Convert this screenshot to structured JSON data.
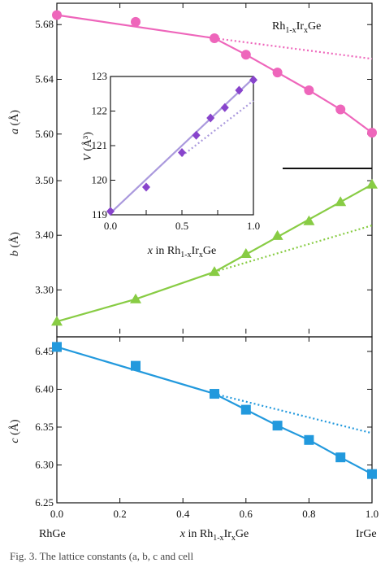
{
  "figure": {
    "caption_fragment": "Fig. 3.  The lattice constants (a, b, c and cell"
  },
  "chart_data": [
    {
      "id": "a",
      "type": "scatter",
      "ylabel_symbol": "a",
      "ylabel_unit": "(Å)",
      "annotation": {
        "base": "Rh",
        "sub1": "1-x",
        "mid": "Ir",
        "sub2": "x",
        "tail": "Ge"
      },
      "color": "#ee66bb",
      "marker": "circle",
      "xlim": [
        0,
        1
      ],
      "ylim": [
        5.585,
        5.695
      ],
      "yticks": [
        5.6,
        5.64,
        5.68
      ],
      "ytick_labels": [
        "5.60",
        "5.64",
        "5.68"
      ],
      "x": [
        0.0,
        0.25,
        0.5,
        0.6,
        0.7,
        0.8,
        0.9,
        1.0
      ],
      "y": [
        5.687,
        5.682,
        5.67,
        5.658,
        5.645,
        5.632,
        5.618,
        5.601
      ],
      "fit_solid": [
        [
          0.0,
          5.687
        ],
        [
          0.5,
          5.67
        ],
        [
          0.6,
          5.658
        ],
        [
          0.7,
          5.645
        ],
        [
          0.8,
          5.632
        ],
        [
          0.9,
          5.618
        ],
        [
          1.0,
          5.601
        ]
      ],
      "fit_dotted": [
        [
          0.5,
          5.67
        ],
        [
          1.0,
          5.655
        ]
      ]
    },
    {
      "id": "b",
      "type": "scatter",
      "ylabel_symbol": "b",
      "ylabel_unit": "(Å)",
      "color": "#88cc44",
      "marker": "triangle",
      "xlim": [
        0,
        1
      ],
      "ylim": [
        3.22,
        3.515
      ],
      "yticks": [
        3.3,
        3.4,
        3.5
      ],
      "ytick_labels": [
        "3.30",
        "3.40",
        "3.50"
      ],
      "x": [
        0.0,
        0.25,
        0.5,
        0.6,
        0.7,
        0.8,
        0.9,
        1.0
      ],
      "y": [
        3.242,
        3.283,
        3.333,
        3.366,
        3.399,
        3.426,
        3.461,
        3.493
      ],
      "fit_solid": [
        [
          0.0,
          3.242
        ],
        [
          0.25,
          3.283
        ],
        [
          0.5,
          3.333
        ],
        [
          1.0,
          3.493
        ]
      ],
      "fit_dotted": [
        [
          0.5,
          3.333
        ],
        [
          1.0,
          3.418
        ]
      ]
    },
    {
      "id": "c",
      "type": "scatter",
      "ylabel_symbol": "c",
      "ylabel_unit": "(Å)",
      "color": "#2299dd",
      "marker": "square",
      "xlim": [
        0,
        1
      ],
      "ylim": [
        6.25,
        6.465
      ],
      "yticks": [
        6.25,
        6.3,
        6.35,
        6.4,
        6.45
      ],
      "ytick_labels": [
        "6.25",
        "6.30",
        "6.35",
        "6.40",
        "6.45"
      ],
      "xticks": [
        0.0,
        0.2,
        0.4,
        0.6,
        0.8,
        1.0
      ],
      "xtick_labels": [
        "0.0",
        "0.2",
        "0.4",
        "0.6",
        "0.8",
        "1.0"
      ],
      "xlabel": {
        "var": "x",
        "pre": " in ",
        "base": "Rh",
        "sub1": "1-x",
        "mid": "Ir",
        "sub2": "x",
        "tail": "Ge"
      },
      "end_labels": [
        "RhGe",
        "IrGe"
      ],
      "x": [
        0.0,
        0.25,
        0.5,
        0.6,
        0.7,
        0.8,
        0.9,
        1.0
      ],
      "y": [
        6.456,
        6.431,
        6.394,
        6.373,
        6.352,
        6.333,
        6.31,
        6.288
      ],
      "fit_solid": [
        [
          0.0,
          6.456
        ],
        [
          0.5,
          6.394
        ],
        [
          0.6,
          6.373
        ],
        [
          0.7,
          6.352
        ],
        [
          0.8,
          6.333
        ],
        [
          0.9,
          6.31
        ],
        [
          1.0,
          6.288
        ]
      ],
      "fit_dotted": [
        [
          0.5,
          6.394
        ],
        [
          1.0,
          6.342
        ]
      ]
    },
    {
      "id": "V",
      "type": "scatter",
      "ylabel_symbol": "V",
      "ylabel_unit": "(Å³)",
      "color": "#8844cc",
      "line_color": "#aa99dd",
      "marker": "diamond",
      "xlim": [
        0,
        1
      ],
      "ylim": [
        119,
        123
      ],
      "yticks": [
        119,
        120,
        121,
        122,
        123
      ],
      "ytick_labels": [
        "119",
        "120",
        "121",
        "122",
        "123"
      ],
      "xticks": [
        0.0,
        0.25,
        0.5,
        0.75,
        1.0
      ],
      "xtick_labels": [
        "0.0",
        "0.5",
        "1.0"
      ],
      "xlabel": {
        "var": "x",
        "pre": " in ",
        "base": "Rh",
        "sub1": "1-x",
        "mid": "Ir",
        "sub2": "x",
        "tail": "Ge"
      },
      "x": [
        0.0,
        0.25,
        0.5,
        0.6,
        0.7,
        0.8,
        0.9,
        1.0
      ],
      "y": [
        119.1,
        119.8,
        120.8,
        121.3,
        121.8,
        122.1,
        122.6,
        122.9
      ],
      "fit_solid": [
        [
          0.0,
          119.05
        ],
        [
          1.0,
          122.95
        ]
      ],
      "fit_dotted": [
        [
          0.5,
          120.7
        ],
        [
          1.0,
          122.3
        ]
      ]
    }
  ]
}
